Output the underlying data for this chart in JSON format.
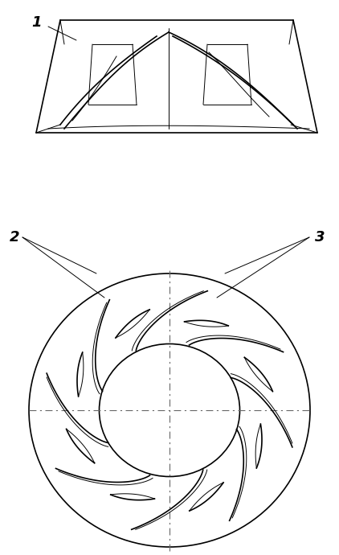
{
  "bg_color": "#ffffff",
  "line_color": "#000000",
  "dash_color": "#888888",
  "label1": "1",
  "label2": "2",
  "label3": "3",
  "figsize": [
    4.22,
    6.9
  ],
  "dpi": 100
}
